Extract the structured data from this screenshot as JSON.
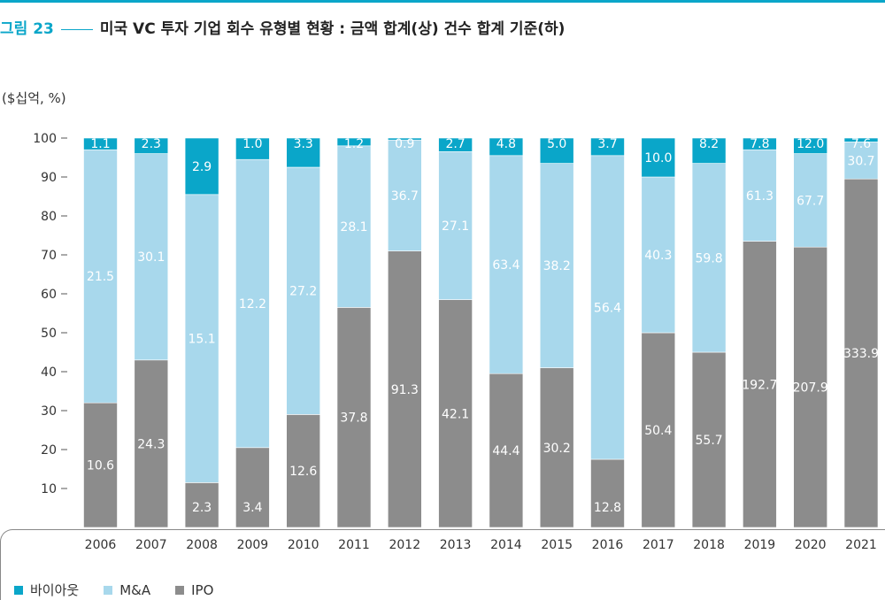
{
  "figure": {
    "number": "그림 23",
    "title": "미국 VC 투자 기업 회수 유형별 현황 : 금액 합계(상) 건수 합계 기준(하)"
  },
  "colors": {
    "buyout": "#0aa6c9",
    "ma": "#a8d8ec",
    "ipo": "#8c8c8c",
    "accent": "#0aa6c9"
  },
  "chart_data": {
    "type": "bar",
    "stacked": true,
    "unit_label": "($십억, %)",
    "ylim": [
      0,
      100
    ],
    "yticks": [
      10,
      20,
      30,
      40,
      50,
      60,
      70,
      80,
      90,
      100
    ],
    "categories": [
      "2006",
      "2007",
      "2008",
      "2009",
      "2010",
      "2011",
      "2012",
      "2013",
      "2014",
      "2015",
      "2016",
      "2017",
      "2018",
      "2019",
      "2020",
      "2021"
    ],
    "series": [
      {
        "name": "IPO",
        "color": "#8c8c8c",
        "share_pct": [
          32,
          43,
          11.5,
          20.5,
          29,
          56.5,
          71,
          58.5,
          39.5,
          41,
          17.5,
          50,
          45,
          73.5,
          72,
          89.5
        ],
        "labels": [
          "10.6",
          "24.3",
          "2.3",
          "3.4",
          "12.6",
          "37.8",
          "91.3",
          "42.1",
          "44.4",
          "30.2",
          "12.8",
          "50.4",
          "55.7",
          "192.7",
          "207.9",
          "333.9"
        ]
      },
      {
        "name": "M&A",
        "color": "#a8d8ec",
        "share_pct": [
          65,
          53,
          74,
          74,
          63.5,
          41.5,
          28.5,
          38,
          56,
          52.5,
          78,
          40,
          48.5,
          23.5,
          24,
          9.5
        ],
        "labels": [
          "21.5",
          "30.1",
          "15.1",
          "12.2",
          "27.2",
          "28.1",
          "36.7",
          "27.1",
          "63.4",
          "38.2",
          "56.4",
          "40.3",
          "59.8",
          "61.3",
          "67.7",
          "30.7"
        ]
      },
      {
        "name": "바이아웃",
        "color": "#0aa6c9",
        "share_pct": [
          3,
          4,
          14.5,
          5.5,
          7.5,
          2,
          0.5,
          3.5,
          4.5,
          6.5,
          4.5,
          10,
          6.5,
          3,
          4,
          1
        ],
        "labels": [
          "1.1",
          "2.3",
          "2.9",
          "1.0",
          "3.3",
          "1.2",
          "0.9",
          "2.7",
          "4.8",
          "5.0",
          "3.7",
          "10.0",
          "8.2",
          "7.8",
          "12.0",
          "7.6"
        ]
      }
    ],
    "legend": [
      "바이아웃",
      "M&A",
      "IPO"
    ],
    "legend_position": "bottom-left"
  }
}
